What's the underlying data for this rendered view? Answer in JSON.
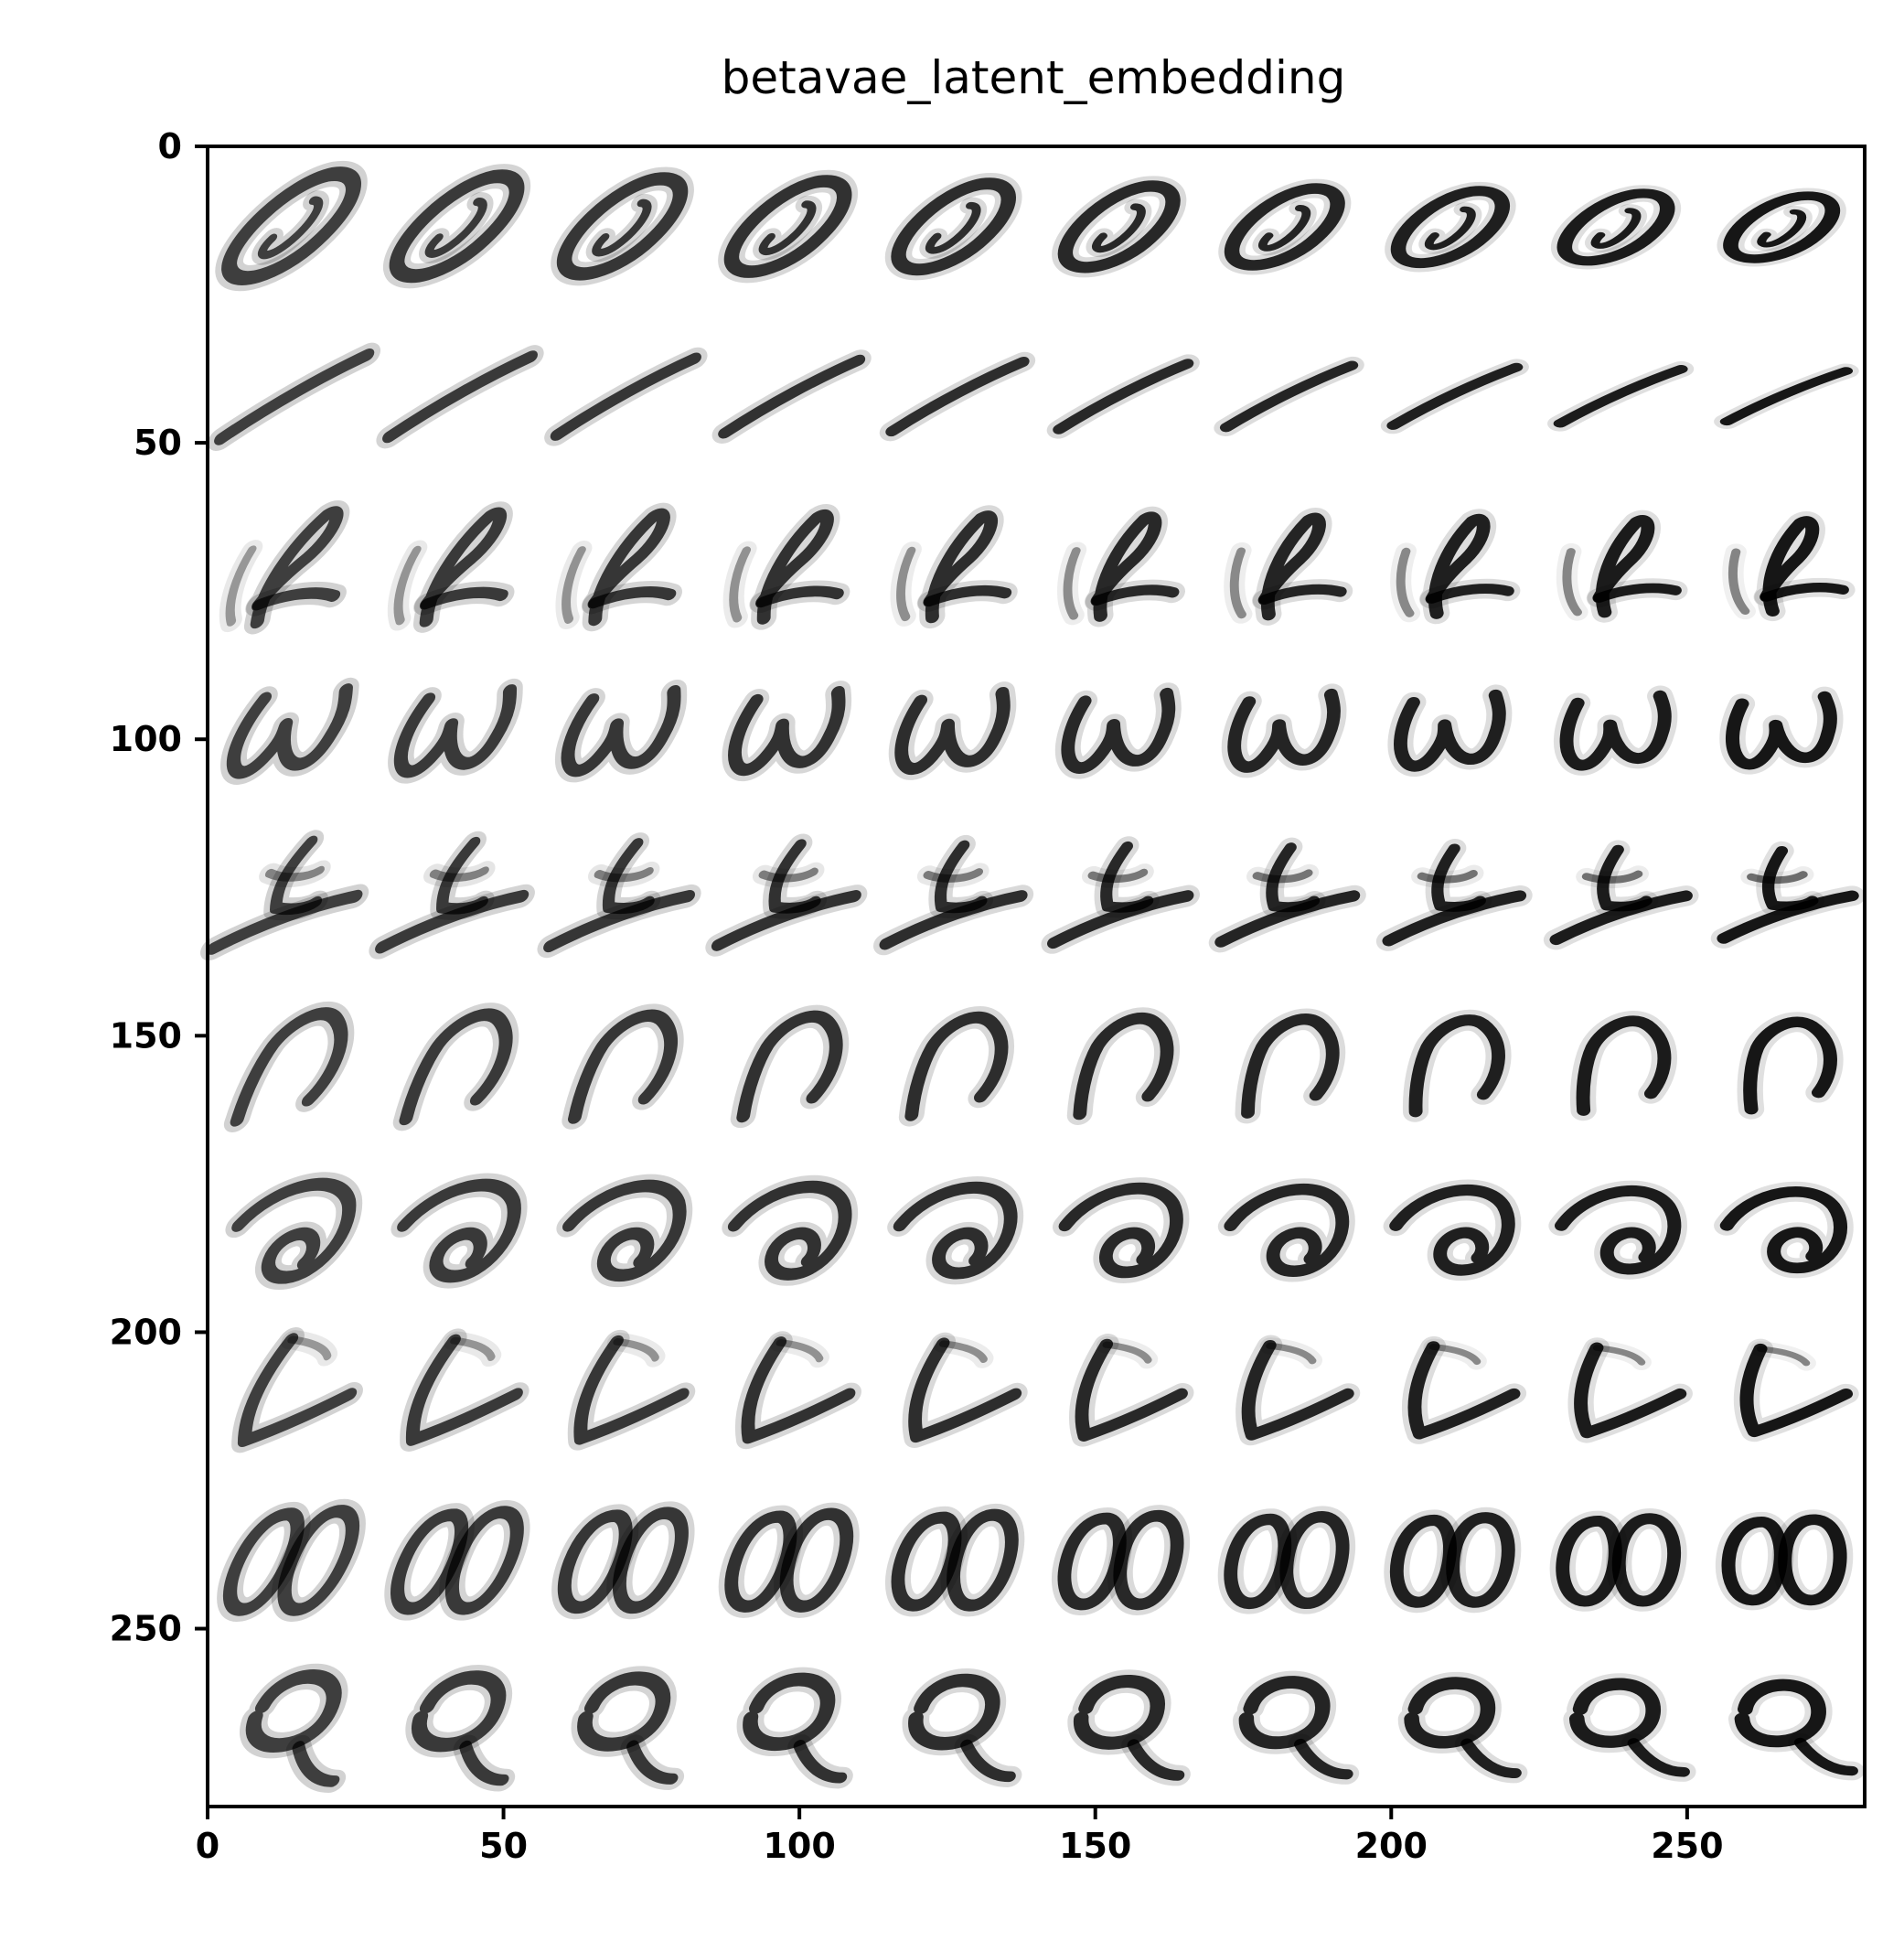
{
  "chart_data": {
    "type": "image",
    "title": "betavae_latent_embedding",
    "xlabel": "",
    "ylabel": "",
    "xlim": [
      0,
      280
    ],
    "ylim": [
      280,
      0
    ],
    "x_ticks": [
      0,
      50,
      100,
      150,
      200,
      250
    ],
    "y_ticks": [
      0,
      50,
      100,
      150,
      200,
      250
    ],
    "grid": false,
    "image": {
      "description": "10 x 10 grid of decoded MNIST-like digit images (28 px cells), each row a latent traversal",
      "rows": 10,
      "cols": 10,
      "cell_size": 28,
      "colormap": "gray_r",
      "row_glyphs": [
        "0",
        "1",
        "2",
        "3",
        "4",
        "5",
        "6",
        "7",
        "8",
        "9"
      ]
    }
  }
}
